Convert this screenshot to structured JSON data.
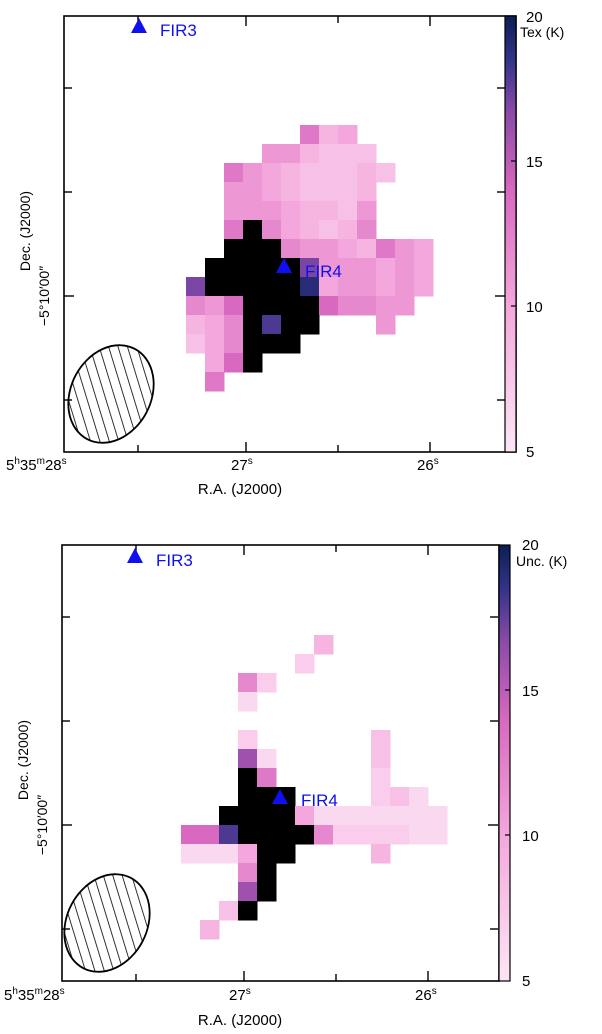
{
  "chart_data": [
    {
      "type": "heatmap",
      "xlabel": "R.A. (J2000)",
      "ylabel": "Dec. (J2000)",
      "x_ticks": [
        {
          "label": "5h35m28s",
          "main": "5",
          "sup1": "h",
          "mid": "35",
          "sup2": "m",
          "tail": "28",
          "sup3": "s"
        },
        {
          "label": "27s",
          "main": "27",
          "sup": "s"
        },
        {
          "label": "26s",
          "main": "26",
          "sup": "s"
        }
      ],
      "y_tick_label": "−5°10′00″",
      "colorbar": {
        "label": "Tex (K)",
        "range": [
          5,
          20
        ],
        "ticks": [
          "20",
          "15",
          "10",
          "5"
        ]
      },
      "markers": [
        {
          "label": "FIR3"
        },
        {
          "label": "FIR4"
        }
      ],
      "beam": "hatched ellipse",
      "colors": {
        "frame": "#000000",
        "marker": "#1010ee",
        "cmap_low": "#fce6f5",
        "cmap_mid": "#d868c0",
        "cmap_high": "#0c1e55"
      },
      "grid": [
        [
          null,
          null,
          null,
          null,
          null,
          null,
          null,
          null,
          null,
          null,
          null,
          null,
          null,
          null
        ],
        [
          null,
          null,
          null,
          null,
          null,
          null,
          13,
          9,
          10,
          null,
          null,
          null,
          null,
          null
        ],
        [
          null,
          null,
          null,
          null,
          11,
          11,
          9,
          8,
          8,
          8,
          null,
          null,
          null,
          null
        ],
        [
          null,
          null,
          13,
          11,
          10,
          9,
          8,
          8,
          8,
          9,
          8,
          null,
          null,
          null
        ],
        [
          null,
          null,
          11,
          11,
          10,
          9,
          8,
          8,
          8,
          9,
          null,
          null,
          null,
          null
        ],
        [
          null,
          null,
          11,
          11,
          11,
          10,
          9,
          9,
          8,
          11,
          null,
          null,
          null,
          null
        ],
        [
          null,
          null,
          13,
          20,
          12,
          10,
          9,
          8,
          9,
          12,
          null,
          null,
          null,
          null
        ],
        [
          null,
          null,
          20,
          20,
          20,
          12,
          11,
          11,
          10,
          9,
          13,
          11,
          10,
          null
        ],
        [
          null,
          20,
          20,
          20,
          20,
          20,
          17,
          11,
          11,
          11,
          10,
          11,
          10,
          null
        ],
        [
          17,
          20,
          20,
          20,
          20,
          20,
          19,
          10,
          11,
          11,
          10,
          11,
          10,
          null
        ],
        [
          12,
          11,
          14,
          20,
          20,
          20,
          20,
          14,
          12,
          12,
          11,
          11,
          null,
          null
        ],
        [
          9,
          10,
          12,
          20,
          18,
          20,
          20,
          null,
          null,
          null,
          11,
          null,
          null,
          null
        ],
        [
          8,
          10,
          12,
          20,
          20,
          20,
          null,
          null,
          null,
          null,
          null,
          null,
          null,
          null
        ],
        [
          null,
          10,
          14,
          20,
          null,
          null,
          null,
          null,
          null,
          null,
          null,
          null,
          null,
          null
        ],
        [
          null,
          13,
          null,
          null,
          null,
          null,
          null,
          null,
          null,
          null,
          null,
          null,
          null,
          null
        ]
      ]
    },
    {
      "type": "heatmap",
      "xlabel": "R.A. (J2000)",
      "ylabel": "Dec. (J2000)",
      "x_ticks": [
        {
          "label": "5h35m28s",
          "main": "5",
          "sup1": "h",
          "mid": "35",
          "sup2": "m",
          "tail": "28",
          "sup3": "s"
        },
        {
          "label": "27s",
          "main": "27",
          "sup": "s"
        },
        {
          "label": "26s",
          "main": "26",
          "sup": "s"
        }
      ],
      "y_tick_label": "−5°10′00″",
      "colorbar": {
        "label": "Unc. (K)",
        "range": [
          5,
          20
        ],
        "ticks": [
          "20",
          "15",
          "10",
          "5"
        ]
      },
      "markers": [
        {
          "label": "FIR3"
        },
        {
          "label": "FIR4"
        }
      ],
      "beam": "hatched ellipse",
      "colors": {
        "frame": "#000000",
        "marker": "#1010ee",
        "cmap_low": "#fce6f5",
        "cmap_mid": "#d868c0",
        "cmap_high": "#0c1e55"
      },
      "grid": [
        [
          null,
          null,
          null,
          null,
          null,
          null,
          null,
          9,
          null,
          null,
          null,
          null,
          null,
          null
        ],
        [
          null,
          null,
          null,
          null,
          null,
          null,
          7,
          null,
          null,
          null,
          null,
          null,
          null,
          null
        ],
        [
          null,
          null,
          null,
          12,
          7,
          null,
          null,
          null,
          null,
          null,
          null,
          null,
          null,
          null
        ],
        [
          null,
          null,
          null,
          6,
          null,
          null,
          null,
          null,
          null,
          null,
          null,
          null,
          null,
          null
        ],
        [
          null,
          null,
          null,
          null,
          null,
          null,
          null,
          null,
          null,
          null,
          null,
          null,
          null,
          null
        ],
        [
          null,
          null,
          null,
          7,
          null,
          null,
          null,
          null,
          null,
          null,
          8,
          null,
          null,
          null
        ],
        [
          null,
          null,
          null,
          16,
          6,
          null,
          null,
          null,
          null,
          null,
          8,
          null,
          null,
          null
        ],
        [
          null,
          null,
          null,
          20,
          13,
          null,
          null,
          null,
          null,
          null,
          7,
          null,
          null,
          null
        ],
        [
          null,
          null,
          null,
          20,
          20,
          20,
          null,
          null,
          null,
          null,
          7,
          8,
          6,
          null
        ],
        [
          null,
          null,
          20,
          20,
          20,
          20,
          10,
          6,
          6,
          6,
          6,
          6,
          6,
          6
        ],
        [
          14,
          14,
          18,
          20,
          20,
          20,
          20,
          12,
          7,
          7,
          7,
          7,
          6,
          6
        ],
        [
          6,
          6,
          6,
          10,
          20,
          20,
          null,
          null,
          null,
          null,
          9,
          null,
          null,
          null
        ],
        [
          null,
          null,
          null,
          12,
          20,
          null,
          null,
          null,
          null,
          null,
          null,
          null,
          null,
          null
        ],
        [
          null,
          null,
          null,
          16,
          20,
          null,
          null,
          null,
          null,
          null,
          null,
          null,
          null,
          null
        ],
        [
          null,
          null,
          8,
          20,
          null,
          null,
          null,
          null,
          null,
          null,
          null,
          null,
          null,
          null
        ],
        [
          null,
          9,
          null,
          null,
          null,
          null,
          null,
          null,
          null,
          null,
          null,
          null,
          null,
          null
        ]
      ]
    }
  ]
}
